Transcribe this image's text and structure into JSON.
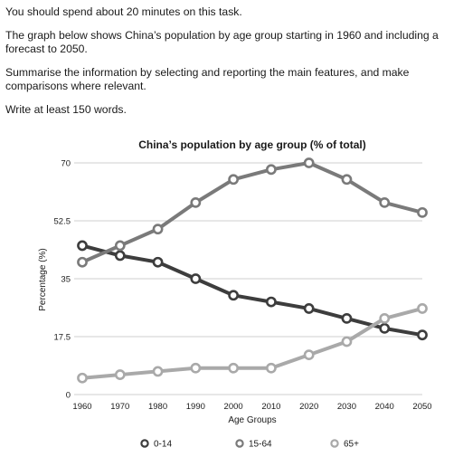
{
  "task": {
    "para1": "You should spend about 20 minutes on this task.",
    "para2": "The graph below shows China’s population by age group starting in 1960 and including a forecast to 2050.",
    "para3": "Summarise the information by selecting and reporting the main features, and make comparisons where relevant.",
    "para4": "Write at least 150 words."
  },
  "chart_data": {
    "type": "line",
    "title": "China’s population by age group (% of total)",
    "xlabel": "Age Groups",
    "ylabel": "Percentage (%)",
    "x": [
      1960,
      1970,
      1980,
      1990,
      2000,
      2010,
      2020,
      2030,
      2040,
      2050
    ],
    "y_ticks": [
      "0",
      "17.5",
      "35",
      "52.5",
      "70"
    ],
    "ylim": [
      0,
      70
    ],
    "grid": "horizontal",
    "legend_position": "bottom",
    "series": [
      {
        "name": "0-14",
        "color": "#3d3d3d",
        "values": [
          45,
          42,
          40,
          35,
          30,
          28,
          26,
          23,
          20,
          18
        ]
      },
      {
        "name": "15-64",
        "color": "#7a7a7a",
        "values": [
          40,
          45,
          50,
          58,
          65,
          68,
          70,
          65,
          58,
          55
        ]
      },
      {
        "name": "65+",
        "color": "#a9a9a9",
        "values": [
          5,
          6,
          7,
          8,
          8,
          8,
          12,
          16,
          23,
          26
        ]
      }
    ]
  }
}
